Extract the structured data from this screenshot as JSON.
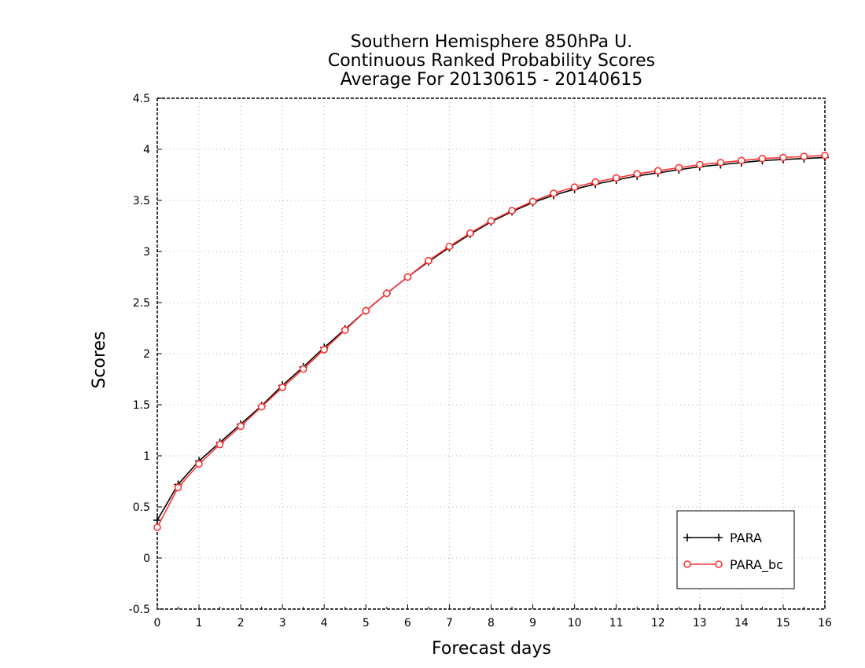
{
  "chart_data": {
    "type": "line",
    "title_lines": [
      "Southern Hemisphere 850hPa U.",
      "Continuous Ranked Probability Scores",
      "Average For 20130615 - 20140615"
    ],
    "xlabel": "Forecast days",
    "ylabel": "Scores",
    "xlim": [
      0,
      16
    ],
    "ylim": [
      -0.5,
      4.5
    ],
    "xticks": [
      0,
      1,
      2,
      3,
      4,
      5,
      6,
      7,
      8,
      9,
      10,
      11,
      12,
      13,
      14,
      15,
      16
    ],
    "yticks": [
      -0.5,
      0,
      0.5,
      1,
      1.5,
      2,
      2.5,
      3,
      3.5,
      4,
      4.5
    ],
    "grid": true,
    "legend_position": "bottom-right",
    "x": [
      0,
      0.5,
      1,
      1.5,
      2,
      2.5,
      3,
      3.5,
      4,
      4.5,
      5,
      5.5,
      6,
      6.5,
      7,
      7.5,
      8,
      8.5,
      9,
      9.5,
      10,
      10.5,
      11,
      11.5,
      12,
      12.5,
      13,
      13.5,
      14,
      14.5,
      15,
      15.5,
      16
    ],
    "series": [
      {
        "name": "PARA",
        "color": "#000000",
        "marker": "plus",
        "values": [
          0.37,
          0.72,
          0.95,
          1.13,
          1.31,
          1.49,
          1.69,
          1.87,
          2.06,
          2.24,
          2.42,
          2.59,
          2.75,
          2.9,
          3.04,
          3.17,
          3.29,
          3.39,
          3.48,
          3.55,
          3.61,
          3.66,
          3.7,
          3.74,
          3.77,
          3.8,
          3.83,
          3.85,
          3.87,
          3.89,
          3.9,
          3.91,
          3.92
        ]
      },
      {
        "name": "PARA_bc",
        "color": "#ff3333",
        "marker": "circle",
        "values": [
          0.3,
          0.69,
          0.92,
          1.11,
          1.29,
          1.48,
          1.67,
          1.85,
          2.04,
          2.23,
          2.42,
          2.59,
          2.75,
          2.91,
          3.05,
          3.18,
          3.3,
          3.4,
          3.49,
          3.57,
          3.63,
          3.68,
          3.72,
          3.76,
          3.79,
          3.82,
          3.85,
          3.87,
          3.89,
          3.91,
          3.92,
          3.93,
          3.94
        ]
      }
    ]
  }
}
